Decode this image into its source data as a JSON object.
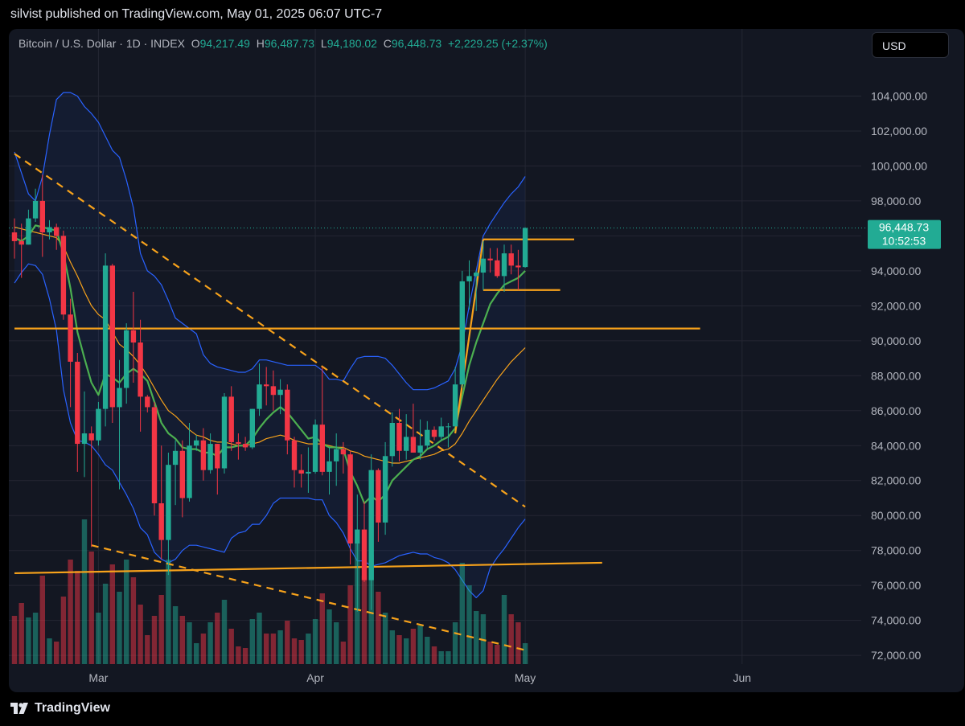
{
  "header": {
    "publish_line": "silvist published on TradingView.com, May 01, 2025 06:07 UTC-7"
  },
  "legend": {
    "symbol": "Bitcoin / U.S. Dollar · 1D · INDEX",
    "o_label": "O",
    "o_value": "94,217.49",
    "h_label": "H",
    "h_value": "96,487.73",
    "l_label": "L",
    "l_value": "94,180.02",
    "c_label": "C",
    "c_value": "96,448.73",
    "change": "+2,229.25 (+2.37%)"
  },
  "currency_button": "USD",
  "price_label": {
    "price": "96,448.73",
    "countdown": "10:52:53"
  },
  "footer": {
    "brand": "TradingView"
  },
  "colors": {
    "up": "#22ab94",
    "down": "#f23645",
    "orange": "#f7a21b",
    "blue": "#2962ff",
    "green_ma": "#4caf50",
    "bg": "#131722",
    "grid": "#242733"
  },
  "chart_data": {
    "type": "candlestick",
    "symbol": "Bitcoin / U.S. Dollar",
    "interval": "1D",
    "ylim": [
      71500,
      106000
    ],
    "yticks": [
      72000,
      74000,
      76000,
      78000,
      80000,
      82000,
      84000,
      86000,
      88000,
      90000,
      92000,
      94000,
      96000,
      98000,
      100000,
      102000,
      104000
    ],
    "ytick_labels": [
      "72,000.00",
      "74,000.00",
      "76,000.00",
      "78,000.00",
      "80,000.00",
      "82,000.00",
      "84,000.00",
      "86,000.00",
      "88,000.00",
      "90,000.00",
      "92,000.00",
      "94,000.00",
      "96,000.00",
      "98,000.00",
      "100,000.00",
      "102,000.00",
      "104,000.00"
    ],
    "x_start_date": "2025-02-17",
    "x_end_date": "2025-06-17",
    "xticks": [
      {
        "date": "2025-03-01",
        "label": "Mar"
      },
      {
        "date": "2025-04-01",
        "label": "Apr"
      },
      {
        "date": "2025-05-01",
        "label": "May"
      },
      {
        "date": "2025-06-01",
        "label": "Jun"
      }
    ],
    "last_price": 96448.73,
    "candles": [
      {
        "date": "2025-02-17",
        "o": 96200,
        "h": 97000,
        "l": 94700,
        "c": 95700
      },
      {
        "date": "2025-02-18",
        "o": 95700,
        "h": 96700,
        "l": 93600,
        "c": 95500
      },
      {
        "date": "2025-02-19",
        "o": 95500,
        "h": 97500,
        "l": 95500,
        "c": 97000
      },
      {
        "date": "2025-02-20",
        "o": 97000,
        "h": 98700,
        "l": 96800,
        "c": 98000
      },
      {
        "date": "2025-02-21",
        "o": 98000,
        "h": 99500,
        "l": 94800,
        "c": 96200
      },
      {
        "date": "2025-02-22",
        "o": 96200,
        "h": 96900,
        "l": 95800,
        "c": 96500
      },
      {
        "date": "2025-02-23",
        "o": 96500,
        "h": 96700,
        "l": 95200,
        "c": 96000
      },
      {
        "date": "2025-02-24",
        "o": 96000,
        "h": 96300,
        "l": 91200,
        "c": 91500
      },
      {
        "date": "2025-02-25",
        "o": 91500,
        "h": 92400,
        "l": 86200,
        "c": 88800
      },
      {
        "date": "2025-02-26",
        "o": 88800,
        "h": 89300,
        "l": 82500,
        "c": 84100
      },
      {
        "date": "2025-02-27",
        "o": 84100,
        "h": 87100,
        "l": 82200,
        "c": 84700
      },
      {
        "date": "2025-02-28",
        "o": 84700,
        "h": 85100,
        "l": 78200,
        "c": 84300
      },
      {
        "date": "2025-03-01",
        "o": 84300,
        "h": 86500,
        "l": 84000,
        "c": 86100
      },
      {
        "date": "2025-03-02",
        "o": 86100,
        "h": 95000,
        "l": 85100,
        "c": 94300
      },
      {
        "date": "2025-03-03",
        "o": 94300,
        "h": 94400,
        "l": 85300,
        "c": 86200
      },
      {
        "date": "2025-03-04",
        "o": 86200,
        "h": 88900,
        "l": 81500,
        "c": 87300
      },
      {
        "date": "2025-03-05",
        "o": 87300,
        "h": 91000,
        "l": 86400,
        "c": 90600
      },
      {
        "date": "2025-03-06",
        "o": 90600,
        "h": 92800,
        "l": 87600,
        "c": 89900
      },
      {
        "date": "2025-03-07",
        "o": 89900,
        "h": 91200,
        "l": 84800,
        "c": 86800
      },
      {
        "date": "2025-03-08",
        "o": 86800,
        "h": 86900,
        "l": 85900,
        "c": 86200
      },
      {
        "date": "2025-03-09",
        "o": 86200,
        "h": 86500,
        "l": 80000,
        "c": 80700
      },
      {
        "date": "2025-03-10",
        "o": 80700,
        "h": 84000,
        "l": 77500,
        "c": 78600
      },
      {
        "date": "2025-03-11",
        "o": 78600,
        "h": 83600,
        "l": 76600,
        "c": 82900
      },
      {
        "date": "2025-03-12",
        "o": 82900,
        "h": 84300,
        "l": 80600,
        "c": 83700
      },
      {
        "date": "2025-03-13",
        "o": 83700,
        "h": 84300,
        "l": 79900,
        "c": 81000
      },
      {
        "date": "2025-03-14",
        "o": 81000,
        "h": 85300,
        "l": 80800,
        "c": 84000
      },
      {
        "date": "2025-03-15",
        "o": 84000,
        "h": 84600,
        "l": 83700,
        "c": 84300
      },
      {
        "date": "2025-03-16",
        "o": 84300,
        "h": 85000,
        "l": 82000,
        "c": 82600
      },
      {
        "date": "2025-03-17",
        "o": 82600,
        "h": 84700,
        "l": 82400,
        "c": 84100
      },
      {
        "date": "2025-03-18",
        "o": 84100,
        "h": 84100,
        "l": 81200,
        "c": 82700
      },
      {
        "date": "2025-03-19",
        "o": 82700,
        "h": 87000,
        "l": 82400,
        "c": 86800
      },
      {
        "date": "2025-03-20",
        "o": 86800,
        "h": 87400,
        "l": 83700,
        "c": 84200
      },
      {
        "date": "2025-03-21",
        "o": 84200,
        "h": 84700,
        "l": 83200,
        "c": 84100
      },
      {
        "date": "2025-03-22",
        "o": 84100,
        "h": 84500,
        "l": 83700,
        "c": 83900
      },
      {
        "date": "2025-03-23",
        "o": 83900,
        "h": 86100,
        "l": 83800,
        "c": 86100
      },
      {
        "date": "2025-03-24",
        "o": 86100,
        "h": 88700,
        "l": 85700,
        "c": 87500
      },
      {
        "date": "2025-03-25",
        "o": 87500,
        "h": 88500,
        "l": 86300,
        "c": 87400
      },
      {
        "date": "2025-03-26",
        "o": 87400,
        "h": 88300,
        "l": 86000,
        "c": 86900
      },
      {
        "date": "2025-03-27",
        "o": 86900,
        "h": 87800,
        "l": 85800,
        "c": 87200
      },
      {
        "date": "2025-03-28",
        "o": 87200,
        "h": 87500,
        "l": 83500,
        "c": 84300
      },
      {
        "date": "2025-03-29",
        "o": 84300,
        "h": 84500,
        "l": 81600,
        "c": 82600
      },
      {
        "date": "2025-03-30",
        "o": 82600,
        "h": 83500,
        "l": 81600,
        "c": 82400
      },
      {
        "date": "2025-03-31",
        "o": 82400,
        "h": 83900,
        "l": 81300,
        "c": 82500
      },
      {
        "date": "2025-04-01",
        "o": 82500,
        "h": 85500,
        "l": 82400,
        "c": 85200
      },
      {
        "date": "2025-04-02",
        "o": 85200,
        "h": 88500,
        "l": 82300,
        "c": 82500
      },
      {
        "date": "2025-04-03",
        "o": 82500,
        "h": 83900,
        "l": 81200,
        "c": 83100
      },
      {
        "date": "2025-04-04",
        "o": 83100,
        "h": 84700,
        "l": 81700,
        "c": 83800
      },
      {
        "date": "2025-04-05",
        "o": 83800,
        "h": 84200,
        "l": 82400,
        "c": 83500
      },
      {
        "date": "2025-04-06",
        "o": 83500,
        "h": 83700,
        "l": 77200,
        "c": 78400
      },
      {
        "date": "2025-04-07",
        "o": 78400,
        "h": 81200,
        "l": 74500,
        "c": 79200
      },
      {
        "date": "2025-04-08",
        "o": 79200,
        "h": 80800,
        "l": 76200,
        "c": 76300
      },
      {
        "date": "2025-04-09",
        "o": 76300,
        "h": 83500,
        "l": 74600,
        "c": 82600
      },
      {
        "date": "2025-04-10",
        "o": 82600,
        "h": 82700,
        "l": 78500,
        "c": 79600
      },
      {
        "date": "2025-04-11",
        "o": 79600,
        "h": 84200,
        "l": 78900,
        "c": 83400
      },
      {
        "date": "2025-04-12",
        "o": 83400,
        "h": 85900,
        "l": 82800,
        "c": 85300
      },
      {
        "date": "2025-04-13",
        "o": 85300,
        "h": 86100,
        "l": 83100,
        "c": 83700
      },
      {
        "date": "2025-04-14",
        "o": 83700,
        "h": 85800,
        "l": 83200,
        "c": 84500
      },
      {
        "date": "2025-04-15",
        "o": 84500,
        "h": 86400,
        "l": 83600,
        "c": 83600
      },
      {
        "date": "2025-04-16",
        "o": 83600,
        "h": 85500,
        "l": 83200,
        "c": 84000
      },
      {
        "date": "2025-04-17",
        "o": 84000,
        "h": 85400,
        "l": 83800,
        "c": 84900
      },
      {
        "date": "2025-04-18",
        "o": 84900,
        "h": 85100,
        "l": 84300,
        "c": 84500
      },
      {
        "date": "2025-04-19",
        "o": 84500,
        "h": 85600,
        "l": 84300,
        "c": 85100
      },
      {
        "date": "2025-04-20",
        "o": 85100,
        "h": 85300,
        "l": 83900,
        "c": 85100
      },
      {
        "date": "2025-04-21",
        "o": 85100,
        "h": 88500,
        "l": 85100,
        "c": 87500
      },
      {
        "date": "2025-04-22",
        "o": 87500,
        "h": 94000,
        "l": 87300,
        "c": 93400
      },
      {
        "date": "2025-04-23",
        "o": 93400,
        "h": 94600,
        "l": 91800,
        "c": 93700
      },
      {
        "date": "2025-04-24",
        "o": 93700,
        "h": 94000,
        "l": 91700,
        "c": 93900
      },
      {
        "date": "2025-04-25",
        "o": 93900,
        "h": 95700,
        "l": 92900,
        "c": 94700
      },
      {
        "date": "2025-04-26",
        "o": 94700,
        "h": 95300,
        "l": 93900,
        "c": 94600
      },
      {
        "date": "2025-04-27",
        "o": 94600,
        "h": 95300,
        "l": 93600,
        "c": 93700
      },
      {
        "date": "2025-04-28",
        "o": 93700,
        "h": 95500,
        "l": 92800,
        "c": 95000
      },
      {
        "date": "2025-04-29",
        "o": 95000,
        "h": 95500,
        "l": 93800,
        "c": 94300
      },
      {
        "date": "2025-04-30",
        "o": 94300,
        "h": 95200,
        "l": 92900,
        "c": 94200
      },
      {
        "date": "2025-05-01",
        "o": 94217.49,
        "h": 96487.73,
        "l": 94180.02,
        "c": 96448.73
      }
    ],
    "volumes": [
      3,
      3.8,
      2.9,
      3.2,
      5.5,
      1.6,
      1.4,
      4.2,
      6.5,
      5.8,
      9,
      7,
      3.2,
      5,
      6.2,
      4.5,
      6.5,
      5.4,
      3.7,
      1.8,
      3,
      4.3,
      6.5,
      3.6,
      3,
      2.6,
      1.3,
      1.9,
      2.6,
      3.2,
      4,
      2.2,
      1.1,
      1,
      2.8,
      3.2,
      1.9,
      1.9,
      2.1,
      2.7,
      1.6,
      1.5,
      1.9,
      2.8,
      4.4,
      3.4,
      2.6,
      1.4,
      4.9,
      7.6,
      5.5,
      6.8,
      4.5,
      3.2,
      2.1,
      1.8,
      1.6,
      2.2,
      2.4,
      1.7,
      1.1,
      0.8,
      0.8,
      2.6,
      6.3,
      4.9,
      3.3,
      3.1,
      1.4,
      1.2,
      4.3,
      3.1,
      2.6,
      1.3
    ],
    "volume_max": 10,
    "levels": [
      {
        "name": "support-resistance-mid",
        "type": "horizontal",
        "price": 90700,
        "from": "2025-02-17",
        "to": "2025-05-26"
      },
      {
        "name": "range-top",
        "type": "horizontal",
        "price": 95800,
        "from": "2025-04-25",
        "to": "2025-05-08"
      },
      {
        "name": "range-bottom",
        "type": "horizontal",
        "price": 92900,
        "from": "2025-04-25",
        "to": "2025-05-06"
      }
    ],
    "trendlines": [
      {
        "name": "lower-support-line",
        "style": "solid",
        "x1": "2025-02-17",
        "y1": 76700,
        "x2": "2025-05-12",
        "y2": 77300
      },
      {
        "name": "descending-resistance",
        "style": "dashed",
        "x1": "2025-02-17",
        "y1": 100700,
        "x2": "2025-05-01",
        "y2": 80500
      },
      {
        "name": "descending-lower-line",
        "style": "dashed",
        "x1": "2025-02-28",
        "y1": 78300,
        "x2": "2025-05-01",
        "y2": 72300
      },
      {
        "name": "breakout-line",
        "style": "solid",
        "x1": "2025-04-21",
        "y1": 84700,
        "x2": "2025-04-25",
        "y2": 95800
      }
    ],
    "ma_fast": [
      95900,
      95700,
      96000,
      96600,
      96500,
      96400,
      96300,
      95000,
      93000,
      90500,
      89000,
      87600,
      86900,
      88100,
      87900,
      87600,
      88100,
      88400,
      88100,
      87700,
      86500,
      85300,
      84700,
      84400,
      83900,
      83800,
      83800,
      83600,
      83600,
      83400,
      83900,
      83900,
      84000,
      84000,
      84400,
      85000,
      85500,
      85900,
      86200,
      85900,
      85400,
      84900,
      84400,
      84500,
      84100,
      83900,
      83900,
      83800,
      82500,
      81700,
      80700,
      81100,
      80800,
      81200,
      82000,
      82400,
      82800,
      83200,
      83400,
      83800,
      84000,
      84300,
      84500,
      85000,
      86800,
      88600,
      89900,
      91000,
      92100,
      92700,
      93200,
      93400,
      93600,
      94000
    ],
    "ma_slow": [
      96500,
      96400,
      96300,
      96200,
      96100,
      96000,
      95900,
      95400,
      94500,
      93700,
      92800,
      92000,
      91500,
      91200,
      90500,
      89800,
      89500,
      89100,
      88600,
      88000,
      87300,
      86600,
      86000,
      85700,
      85300,
      84900,
      84600,
      84500,
      84300,
      84200,
      84200,
      84100,
      84000,
      84000,
      84100,
      84200,
      84400,
      84500,
      84600,
      84500,
      84300,
      84200,
      84100,
      84100,
      84100,
      84000,
      83900,
      83900,
      83700,
      83600,
      83400,
      83300,
      83200,
      83100,
      83000,
      83000,
      83100,
      83200,
      83300,
      83400,
      83500,
      83700,
      83800,
      84100,
      84700,
      85400,
      86000,
      86600,
      87200,
      87800,
      88300,
      88800,
      89200,
      89600
    ],
    "bb_upper": [
      100800,
      99600,
      98400,
      98000,
      99400,
      101800,
      103800,
      104200,
      104200,
      104000,
      103400,
      103000,
      102500,
      101700,
      100900,
      100500,
      99200,
      97600,
      95000,
      94000,
      93700,
      93200,
      92300,
      91300,
      91000,
      90700,
      90400,
      89200,
      88700,
      88500,
      88400,
      88300,
      88200,
      88200,
      88400,
      88900,
      88900,
      88800,
      88700,
      88600,
      88600,
      88600,
      88600,
      88600,
      88300,
      87800,
      87800,
      87700,
      88400,
      89000,
      89100,
      89100,
      89100,
      89000,
      88600,
      88100,
      87600,
      87200,
      87200,
      87200,
      87300,
      87500,
      87700,
      88400,
      89800,
      92000,
      94000,
      96000,
      96700,
      97300,
      97900,
      98400,
      98800,
      99400
    ],
    "bb_lower": [
      93300,
      93900,
      94400,
      94300,
      93800,
      92400,
      90600,
      87200,
      85300,
      84300,
      84200,
      84000,
      83500,
      82900,
      82600,
      81900,
      81200,
      80400,
      79300,
      78900,
      77900,
      77500,
      77300,
      77500,
      78000,
      78300,
      78300,
      78200,
      78100,
      78000,
      77900,
      78700,
      79000,
      79100,
      79500,
      79500,
      80000,
      80700,
      81000,
      81000,
      81000,
      81000,
      81000,
      80900,
      80900,
      80000,
      79600,
      79000,
      78100,
      77400,
      77400,
      77100,
      77200,
      77300,
      77500,
      77700,
      77800,
      77900,
      77800,
      77800,
      77600,
      77500,
      77300,
      76900,
      76300,
      75700,
      75300,
      75700,
      77000,
      77600,
      78100,
      78700,
      79300,
      79800
    ]
  }
}
